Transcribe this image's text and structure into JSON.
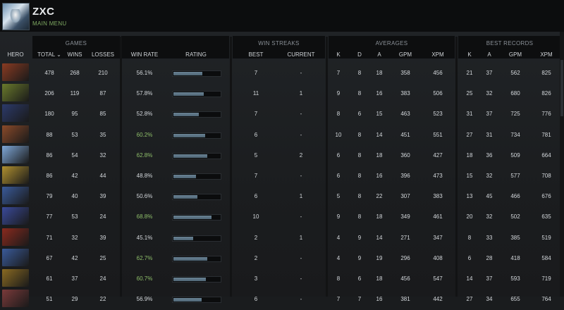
{
  "user": {
    "name": "ZXC",
    "menu": "MAIN MENU"
  },
  "groups": {
    "games": "GAMES",
    "win_streaks": "WIN STREAKS",
    "averages": "AVERAGES",
    "best_records": "BEST RECORDS"
  },
  "columns": {
    "hero": "HERO",
    "total": "TOTAL ⌄",
    "wins": "WINS",
    "losses": "LOSSES",
    "win_rate": "WIN RATE",
    "rating": "RATING",
    "best": "BEST",
    "current": "CURRENT",
    "k": "K",
    "d": "D",
    "a": "A",
    "gpm": "GPM",
    "xpm": "XPM",
    "rk": "K",
    "ra": "A",
    "rgpm": "GPM",
    "rxpm": "XPM"
  },
  "rows": [
    {
      "total": "478",
      "wins": "268",
      "losses": "210",
      "win_rate": "56.1%",
      "green": false,
      "rating": 0.62,
      "best": "7",
      "current": "-",
      "k": "7",
      "d": "8",
      "a": "18",
      "gpm": "358",
      "xpm": "456",
      "rk": "21",
      "ra": "37",
      "rgpm": "562",
      "rxpm": "825",
      "color": "#8a3b22"
    },
    {
      "total": "206",
      "wins": "119",
      "losses": "87",
      "win_rate": "57.8%",
      "green": false,
      "rating": 0.65,
      "best": "11",
      "current": "1",
      "k": "9",
      "d": "8",
      "a": "16",
      "gpm": "383",
      "xpm": "506",
      "rk": "25",
      "ra": "32",
      "rgpm": "680",
      "rxpm": "826",
      "color": "#6a7a2c"
    },
    {
      "total": "180",
      "wins": "95",
      "losses": "85",
      "win_rate": "52.8%",
      "green": false,
      "rating": 0.55,
      "best": "7",
      "current": "-",
      "k": "8",
      "d": "6",
      "a": "15",
      "gpm": "463",
      "xpm": "523",
      "rk": "31",
      "ra": "37",
      "rgpm": "725",
      "rxpm": "776",
      "color": "#2c3a6a"
    },
    {
      "total": "88",
      "wins": "53",
      "losses": "35",
      "win_rate": "60.2%",
      "green": true,
      "rating": 0.68,
      "best": "6",
      "current": "-",
      "k": "10",
      "d": "8",
      "a": "14",
      "gpm": "451",
      "xpm": "551",
      "rk": "27",
      "ra": "31",
      "rgpm": "734",
      "rxpm": "781",
      "color": "#8a4a2a"
    },
    {
      "total": "86",
      "wins": "54",
      "losses": "32",
      "win_rate": "62.8%",
      "green": true,
      "rating": 0.72,
      "best": "5",
      "current": "2",
      "k": "6",
      "d": "8",
      "a": "18",
      "gpm": "360",
      "xpm": "427",
      "rk": "18",
      "ra": "36",
      "rgpm": "509",
      "rxpm": "664",
      "color": "#7fa8d8"
    },
    {
      "total": "86",
      "wins": "42",
      "losses": "44",
      "win_rate": "48.8%",
      "green": false,
      "rating": 0.48,
      "best": "7",
      "current": "-",
      "k": "6",
      "d": "8",
      "a": "16",
      "gpm": "396",
      "xpm": "473",
      "rk": "15",
      "ra": "32",
      "rgpm": "577",
      "rxpm": "708",
      "color": "#b09030"
    },
    {
      "total": "79",
      "wins": "40",
      "losses": "39",
      "win_rate": "50.6%",
      "green": false,
      "rating": 0.51,
      "best": "6",
      "current": "1",
      "k": "5",
      "d": "8",
      "a": "22",
      "gpm": "307",
      "xpm": "383",
      "rk": "13",
      "ra": "45",
      "rgpm": "466",
      "rxpm": "676",
      "color": "#3a5a9a"
    },
    {
      "total": "77",
      "wins": "53",
      "losses": "24",
      "win_rate": "68.8%",
      "green": true,
      "rating": 0.82,
      "best": "10",
      "current": "-",
      "k": "9",
      "d": "8",
      "a": "18",
      "gpm": "349",
      "xpm": "461",
      "rk": "20",
      "ra": "32",
      "rgpm": "502",
      "rxpm": "635",
      "color": "#3a4a9a"
    },
    {
      "total": "71",
      "wins": "32",
      "losses": "39",
      "win_rate": "45.1%",
      "green": false,
      "rating": 0.42,
      "best": "2",
      "current": "1",
      "k": "4",
      "d": "9",
      "a": "14",
      "gpm": "271",
      "xpm": "347",
      "rk": "8",
      "ra": "33",
      "rgpm": "385",
      "rxpm": "519",
      "color": "#8a2a1e"
    },
    {
      "total": "67",
      "wins": "42",
      "losses": "25",
      "win_rate": "62.7%",
      "green": true,
      "rating": 0.72,
      "best": "2",
      "current": "-",
      "k": "4",
      "d": "9",
      "a": "19",
      "gpm": "296",
      "xpm": "408",
      "rk": "6",
      "ra": "28",
      "rgpm": "418",
      "rxpm": "584",
      "color": "#3a5a9a"
    },
    {
      "total": "61",
      "wins": "37",
      "losses": "24",
      "win_rate": "60.7%",
      "green": true,
      "rating": 0.69,
      "best": "3",
      "current": "-",
      "k": "8",
      "d": "6",
      "a": "18",
      "gpm": "456",
      "xpm": "547",
      "rk": "14",
      "ra": "37",
      "rgpm": "593",
      "rxpm": "719",
      "color": "#8a6a22"
    },
    {
      "total": "51",
      "wins": "29",
      "losses": "22",
      "win_rate": "56.9%",
      "green": false,
      "rating": 0.6,
      "best": "6",
      "current": "-",
      "k": "7",
      "d": "7",
      "a": "16",
      "gpm": "381",
      "xpm": "442",
      "rk": "27",
      "ra": "34",
      "rgpm": "655",
      "rxpm": "764",
      "color": "#7a3a3a"
    }
  ]
}
